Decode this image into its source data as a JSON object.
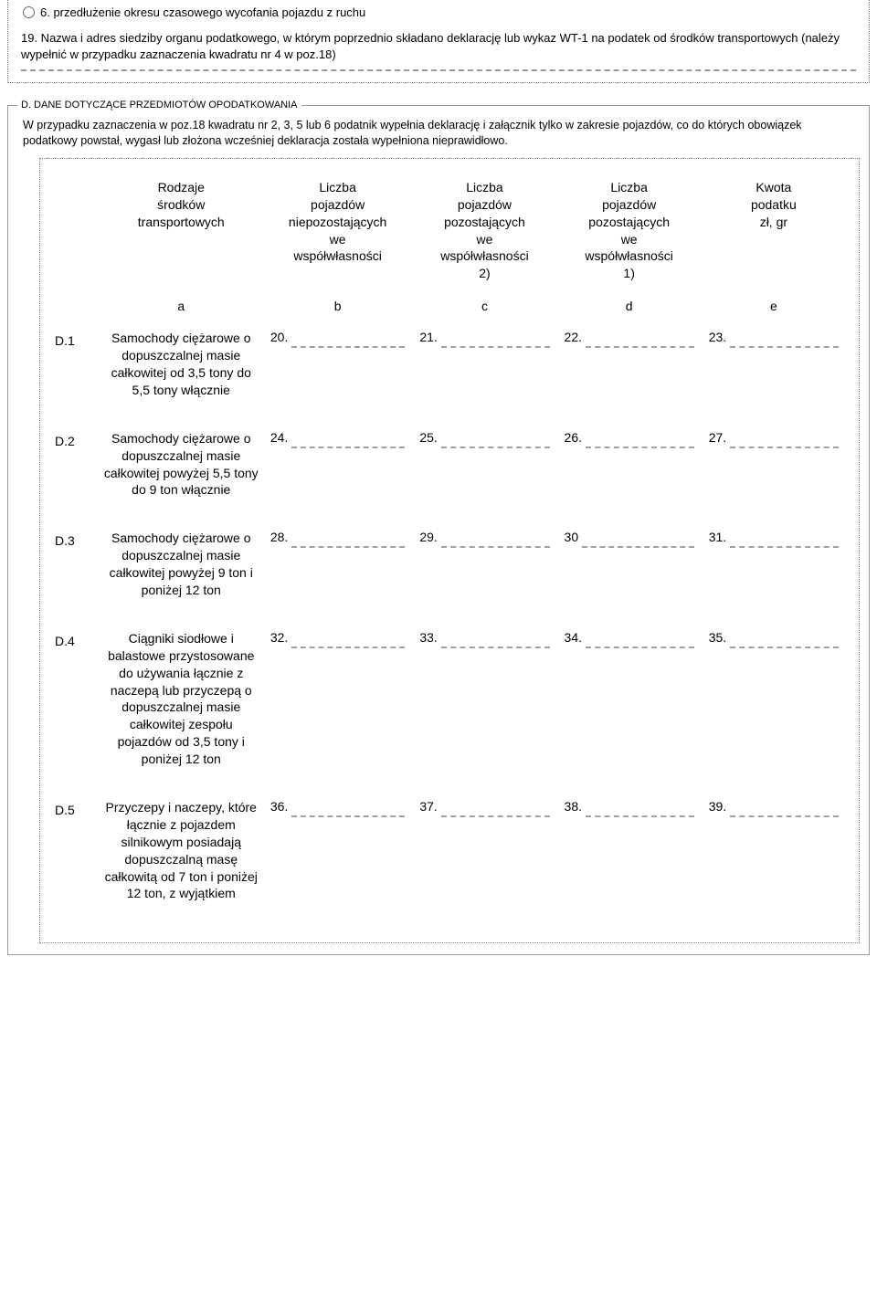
{
  "box_top": {
    "radio6_label": "6. przedłużenie okresu czasowego wycofania pojazdu z ruchu",
    "field19_label": "19. Nazwa i adres siedziby organu podatkowego, w którym poprzednio składano deklarację lub wykaz WT-1 na podatek od środków transportowych (należy wypełnić w przypadku zaznaczenia kwadratu nr 4 w poz.18)"
  },
  "section_d": {
    "legend": "D. DANE DOTYCZĄCE PRZEDMIOTÓW OPODATKOWANIA",
    "note": "W przypadku zaznaczenia w poz.18 kwadratu nr 2, 3, 5 lub 6 podatnik wypełnia deklarację i załącznik tylko w zakresie pojazdów, co do których obowiązek podatkowy powstał, wygasł lub złożona wcześniej deklaracja została wypełniona nieprawidłowo.",
    "headers": {
      "a": "Rodzaje\nśrodków\ntransportowych",
      "b": "Liczba\npojazdów\nniepozostających\nwe\nwspółwłasności",
      "c": "Liczba\npojazdów\npozostających\nwe\nwspółwłasności\n2)",
      "d": "Liczba\npojazdów\npozostających\nwe\nwspółwłasności\n1)",
      "e": "Kwota\npodatku\nzł, gr"
    },
    "letters": {
      "a": "a",
      "b": "b",
      "c": "c",
      "d": "d",
      "e": "e"
    },
    "rows": [
      {
        "id": "D.1",
        "desc": "Samochody ciężarowe o dopuszczalnej masie całkowitej od 3,5 tony do 5,5 tony włącznie",
        "b": "20.",
        "c": "21.",
        "d": "22.",
        "e": "23."
      },
      {
        "id": "D.2",
        "desc": "Samochody ciężarowe o dopuszczalnej masie całkowitej powyżej 5,5 tony do 9 ton włącznie",
        "b": "24.",
        "c": "25.",
        "d": "26.",
        "e": "27."
      },
      {
        "id": "D.3",
        "desc": "Samochody ciężarowe o dopuszczalnej masie całkowitej powyżej 9 ton i poniżej 12 ton",
        "b": "28.",
        "c": "29.",
        "d": "30",
        "e": "31."
      },
      {
        "id": "D.4",
        "desc": "Ciągniki siodłowe i balastowe przystosowane do używania łącznie z naczepą lub przyczepą o dopuszczalnej masie całkowitej zespołu pojazdów od 3,5 tony i poniżej 12 ton",
        "b": "32.",
        "c": "33.",
        "d": "34.",
        "e": "35."
      },
      {
        "id": "D.5",
        "desc": "Przyczepy i naczepy, które łącznie z pojazdem silnikowym posiadają dopuszczalną masę całkowitą od 7 ton i poniżej 12 ton, z wyjątkiem",
        "b": "36.",
        "c": "37.",
        "d": "38.",
        "e": "39."
      }
    ]
  }
}
